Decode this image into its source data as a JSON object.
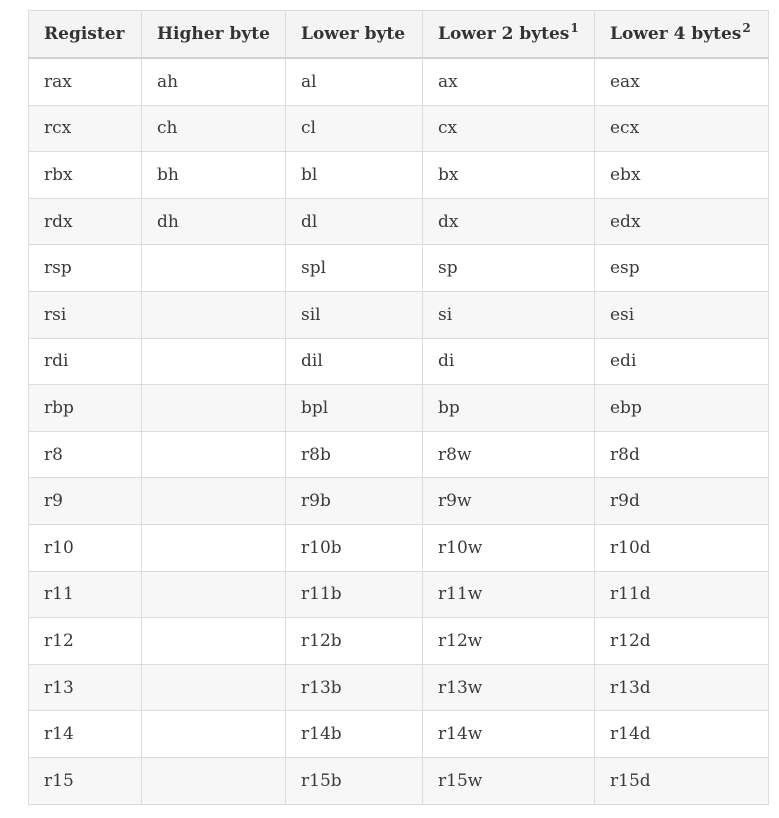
{
  "table": {
    "headers": [
      {
        "label": "Register",
        "sup": ""
      },
      {
        "label": "Higher byte",
        "sup": ""
      },
      {
        "label": "Lower byte",
        "sup": ""
      },
      {
        "label": "Lower 2 bytes",
        "sup": "1"
      },
      {
        "label": "Lower 4 bytes",
        "sup": "2"
      }
    ],
    "rows": [
      [
        "rax",
        "ah",
        "al",
        "ax",
        "eax"
      ],
      [
        "rcx",
        "ch",
        "cl",
        "cx",
        "ecx"
      ],
      [
        "rbx",
        "bh",
        "bl",
        "bx",
        "ebx"
      ],
      [
        "rdx",
        "dh",
        "dl",
        "dx",
        "edx"
      ],
      [
        "rsp",
        "",
        "spl",
        "sp",
        "esp"
      ],
      [
        "rsi",
        "",
        "sil",
        "si",
        "esi"
      ],
      [
        "rdi",
        "",
        "dil",
        "di",
        "edi"
      ],
      [
        "rbp",
        "",
        "bpl",
        "bp",
        "ebp"
      ],
      [
        "r8",
        "",
        "r8b",
        "r8w",
        "r8d"
      ],
      [
        "r9",
        "",
        "r9b",
        "r9w",
        "r9d"
      ],
      [
        "r10",
        "",
        "r10b",
        "r10w",
        "r10d"
      ],
      [
        "r11",
        "",
        "r11b",
        "r11w",
        "r11d"
      ],
      [
        "r12",
        "",
        "r12b",
        "r12w",
        "r12d"
      ],
      [
        "r13",
        "",
        "r13b",
        "r13w",
        "r13d"
      ],
      [
        "r14",
        "",
        "r14b",
        "r14w",
        "r14d"
      ],
      [
        "r15",
        "",
        "r15b",
        "r15w",
        "r15d"
      ]
    ]
  }
}
